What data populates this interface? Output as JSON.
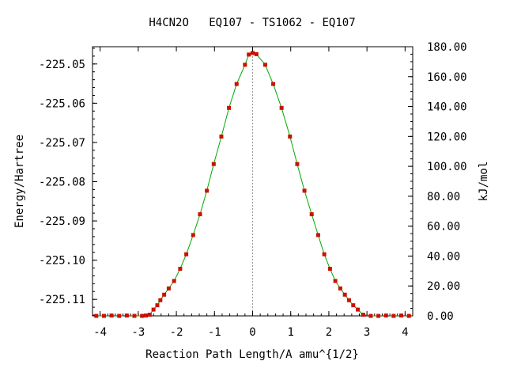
{
  "chart_data": {
    "type": "scatter",
    "title": "H4CN2O   EQ107 - TS1062 - EQ107",
    "xlabel": "Reaction Path Length/A amu^{1/2}",
    "ylabel": "Energy/Hartree",
    "y2label": "kJ/mol",
    "xlim": [
      -4.2,
      4.2
    ],
    "ylim": [
      -225.1142,
      -225.0456
    ],
    "y2lim": [
      0,
      180
    ],
    "x_ticks": [
      -4,
      -3,
      -2,
      -1,
      0,
      1,
      2,
      3,
      4
    ],
    "x_tick_labels": [
      "-4",
      "-3",
      "-2",
      "-1",
      "0",
      "1",
      "2",
      "3",
      "4"
    ],
    "y_ticks": [
      -225.05,
      -225.06,
      -225.07,
      -225.08,
      -225.09,
      -225.1,
      -225.11
    ],
    "y_tick_labels": [
      "-225.05",
      "-225.06",
      "-225.07",
      "-225.08",
      "-225.09",
      "-225.10",
      "-225.11"
    ],
    "y2_ticks": [
      0,
      20,
      40,
      60,
      80,
      100,
      120,
      140,
      160,
      180
    ],
    "y2_tick_labels": [
      "0.00",
      "20.00",
      "40.00",
      "60.00",
      "80.00",
      "100.00",
      "120.00",
      "140.00",
      "160.00",
      "180.00"
    ],
    "ts_x": 0,
    "curve_color": "#00aa00",
    "point_color": "#cc1100",
    "ts_line_color": "#999999",
    "series": [
      {
        "x": [
          -4.1,
          -3.9,
          -3.7,
          -3.5,
          -3.3,
          -3.1,
          -2.9,
          -2.8,
          -2.7,
          -2.6,
          -2.5,
          -2.42,
          -2.32,
          -2.2,
          -2.06,
          -1.9,
          -1.74,
          -1.56,
          -1.38,
          -1.2,
          -1.02,
          -0.82,
          -0.62,
          -0.42,
          -0.2,
          -0.1,
          0,
          0.1,
          0.33,
          0.54,
          0.76,
          0.98,
          1.17,
          1.36,
          1.55,
          1.72,
          1.88,
          2.03,
          2.17,
          2.3,
          2.42,
          2.53,
          2.64,
          2.76,
          2.9,
          3.1,
          3.3,
          3.5,
          3.7,
          3.9,
          4.1
        ],
        "y": [
          -225.1142,
          -225.1142,
          -225.1141,
          -225.1142,
          -225.1141,
          -225.1142,
          -225.1142,
          -225.1141,
          -225.1139,
          -225.1126,
          -225.1115,
          -225.1102,
          -225.1088,
          -225.1072,
          -225.1053,
          -225.1022,
          -225.0985,
          -225.0936,
          -225.0883,
          -225.0823,
          -225.0755,
          -225.0685,
          -225.0612,
          -225.0551,
          -225.0502,
          -225.0476,
          -225.0472,
          -225.0475,
          -225.0502,
          -225.0551,
          -225.0612,
          -225.0685,
          -225.0755,
          -225.0823,
          -225.0883,
          -225.0936,
          -225.0985,
          -225.1022,
          -225.1053,
          -225.1072,
          -225.1088,
          -225.1102,
          -225.1115,
          -225.1126,
          -225.1139,
          -225.1142,
          -225.1142,
          -225.1141,
          -225.1142,
          -225.1141,
          -225.1142
        ]
      }
    ]
  }
}
